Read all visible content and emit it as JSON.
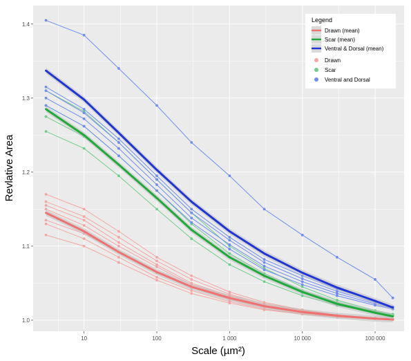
{
  "chart_data": {
    "type": "line",
    "title": "",
    "xlabel": "Scale (µm²)",
    "ylabel": "Revlative Area",
    "x_scale": "log",
    "xlim": [
      2,
      250000
    ],
    "ylim": [
      0.985,
      1.425
    ],
    "x_ticks": [
      10,
      100,
      1000,
      10000,
      100000
    ],
    "x_tick_labels": [
      "10",
      "100",
      "1 000",
      "10 000",
      "100 000"
    ],
    "y_ticks": [
      1.0,
      1.1,
      1.2,
      1.3,
      1.4
    ],
    "y_tick_labels": [
      "1.0",
      "1.1",
      "1.2",
      "1.3",
      "1.4"
    ],
    "grid": true,
    "legend": {
      "title": "Legend",
      "placement": "top-right",
      "entries": [
        {
          "label": "Drawn (mean)",
          "kind": "line",
          "color": "#f07270"
        },
        {
          "label": "Scar (mean)",
          "kind": "line",
          "color": "#1faa3a"
        },
        {
          "label": "Ventral & Dorsal (mean)",
          "kind": "line",
          "color": "#1f35d8"
        },
        {
          "label": "Drawn",
          "kind": "point",
          "color": "#f4a6a3"
        },
        {
          "label": "Scar",
          "kind": "point",
          "color": "#6fce8d"
        },
        {
          "label": "Ventral and Dorsal",
          "kind": "point",
          "color": "#6f8cf0"
        }
      ]
    },
    "colors": {
      "drawn_mean": "#f07270",
      "scar_mean": "#1faa3a",
      "ventral_dorsal_mean": "#1f35d8",
      "drawn_points": "#f4a6a3",
      "scar_points": "#6fce8d",
      "ventral_dorsal_points": "#6f8cf0",
      "panel_background": "#ebebeb",
      "grid": "#ffffff"
    },
    "mean_curves": [
      {
        "group": "Drawn",
        "x": [
          3,
          10,
          30,
          100,
          300,
          1000,
          3000,
          10000,
          30000,
          100000,
          175000
        ],
        "y": [
          1.145,
          1.12,
          1.092,
          1.065,
          1.045,
          1.03,
          1.019,
          1.011,
          1.006,
          1.002,
          1.001
        ]
      },
      {
        "group": "Scar",
        "x": [
          3,
          10,
          30,
          100,
          300,
          1000,
          3000,
          10000,
          30000,
          100000,
          175000
        ],
        "y": [
          1.285,
          1.25,
          1.21,
          1.165,
          1.122,
          1.085,
          1.06,
          1.038,
          1.022,
          1.01,
          1.005
        ]
      },
      {
        "group": "Ventral & Dorsal",
        "x": [
          3,
          10,
          30,
          100,
          300,
          1000,
          3000,
          10000,
          30000,
          100000,
          175000
        ],
        "y": [
          1.337,
          1.298,
          1.253,
          1.203,
          1.16,
          1.12,
          1.09,
          1.064,
          1.044,
          1.026,
          1.017
        ]
      }
    ],
    "specimen_series": [
      {
        "group": "Drawn",
        "x": [
          3,
          10,
          30,
          100,
          300,
          1000,
          3000,
          10000,
          30000,
          100000,
          175000
        ],
        "y": [
          1.17,
          1.15,
          1.12,
          1.085,
          1.06,
          1.038,
          1.024,
          1.014,
          1.007,
          1.003,
          1.001
        ]
      },
      {
        "group": "Drawn",
        "x": [
          3,
          10,
          30,
          100,
          300,
          1000,
          3000,
          10000,
          30000,
          100000,
          175000
        ],
        "y": [
          1.16,
          1.14,
          1.112,
          1.08,
          1.055,
          1.035,
          1.022,
          1.013,
          1.007,
          1.003,
          1.001
        ]
      },
      {
        "group": "Drawn",
        "x": [
          3,
          10,
          30,
          100,
          300,
          1000,
          3000,
          10000,
          30000,
          100000,
          175000
        ],
        "y": [
          1.155,
          1.135,
          1.105,
          1.075,
          1.05,
          1.033,
          1.02,
          1.012,
          1.006,
          1.003,
          1.001
        ]
      },
      {
        "group": "Drawn",
        "x": [
          3,
          10,
          30,
          100,
          300,
          1000,
          3000,
          10000,
          30000,
          100000,
          175000
        ],
        "y": [
          1.15,
          1.128,
          1.1,
          1.072,
          1.048,
          1.031,
          1.019,
          1.011,
          1.006,
          1.003,
          1.001
        ]
      },
      {
        "group": "Drawn",
        "x": [
          3,
          10,
          30,
          100,
          300,
          1000,
          3000,
          10000,
          30000,
          100000,
          175000
        ],
        "y": [
          1.135,
          1.117,
          1.092,
          1.064,
          1.044,
          1.028,
          1.017,
          1.01,
          1.005,
          1.002,
          1.001
        ]
      },
      {
        "group": "Drawn",
        "x": [
          3,
          10,
          30,
          100,
          300,
          1000,
          3000,
          10000,
          30000,
          100000,
          175000
        ],
        "y": [
          1.13,
          1.11,
          1.085,
          1.058,
          1.04,
          1.025,
          1.015,
          1.009,
          1.005,
          1.002,
          1.001
        ]
      },
      {
        "group": "Drawn",
        "x": [
          3,
          10,
          30,
          100,
          300,
          1000,
          3000,
          10000,
          30000,
          100000,
          175000
        ],
        "y": [
          1.115,
          1.1,
          1.078,
          1.054,
          1.036,
          1.023,
          1.014,
          1.008,
          1.004,
          1.002,
          1.001
        ]
      },
      {
        "group": "Scar",
        "x": [
          3,
          10,
          30,
          100,
          300,
          1000,
          3000,
          10000,
          30000,
          100000,
          175000
        ],
        "y": [
          1.31,
          1.282,
          1.24,
          1.19,
          1.145,
          1.1,
          1.07,
          1.045,
          1.027,
          1.013,
          1.008
        ]
      },
      {
        "group": "Scar",
        "x": [
          3,
          10,
          30,
          100,
          300,
          1000,
          3000,
          10000,
          30000,
          100000,
          175000
        ],
        "y": [
          1.29,
          1.262,
          1.222,
          1.175,
          1.13,
          1.09,
          1.063,
          1.04,
          1.024,
          1.012,
          1.007
        ]
      },
      {
        "group": "Scar",
        "x": [
          3,
          10,
          30,
          100,
          300,
          1000,
          3000,
          10000,
          30000,
          100000,
          175000
        ],
        "y": [
          1.275,
          1.248,
          1.21,
          1.165,
          1.122,
          1.085,
          1.059,
          1.037,
          1.022,
          1.011,
          1.006
        ]
      },
      {
        "group": "Scar",
        "x": [
          3,
          10,
          30,
          100,
          300,
          1000,
          3000,
          10000,
          30000,
          100000,
          175000
        ],
        "y": [
          1.255,
          1.232,
          1.195,
          1.15,
          1.11,
          1.075,
          1.052,
          1.033,
          1.02,
          1.01,
          1.006
        ]
      },
      {
        "group": "Ventral & Dorsal",
        "x": [
          3,
          10,
          30,
          100,
          300,
          1000,
          3000,
          10000,
          30000,
          100000,
          175000
        ],
        "y": [
          1.405,
          1.385,
          1.34,
          1.29,
          1.24,
          1.195,
          1.15,
          1.115,
          1.085,
          1.055,
          1.03
        ]
      },
      {
        "group": "Ventral & Dorsal",
        "x": [
          3,
          10,
          30,
          100,
          300,
          1000,
          3000,
          10000,
          30000,
          100000,
          175000
        ],
        "y": [
          1.315,
          1.285,
          1.245,
          1.195,
          1.15,
          1.112,
          1.082,
          1.06,
          1.042,
          1.026,
          1.018
        ]
      },
      {
        "group": "Ventral & Dorsal",
        "x": [
          3,
          10,
          30,
          100,
          300,
          1000,
          3000,
          10000,
          30000,
          100000,
          175000
        ],
        "y": [
          1.31,
          1.28,
          1.24,
          1.19,
          1.145,
          1.108,
          1.078,
          1.056,
          1.039,
          1.024,
          1.017
        ]
      },
      {
        "group": "Ventral & Dorsal",
        "x": [
          3,
          10,
          30,
          100,
          300,
          1000,
          3000,
          10000,
          30000,
          100000,
          175000
        ],
        "y": [
          1.3,
          1.272,
          1.232,
          1.183,
          1.138,
          1.102,
          1.073,
          1.052,
          1.036,
          1.022,
          1.016
        ]
      },
      {
        "group": "Ventral & Dorsal",
        "x": [
          3,
          10,
          30,
          100,
          300,
          1000,
          3000,
          10000,
          30000,
          100000,
          175000
        ],
        "y": [
          1.29,
          1.262,
          1.222,
          1.175,
          1.132,
          1.096,
          1.068,
          1.048,
          1.033,
          1.02,
          1.015
        ]
      }
    ]
  }
}
